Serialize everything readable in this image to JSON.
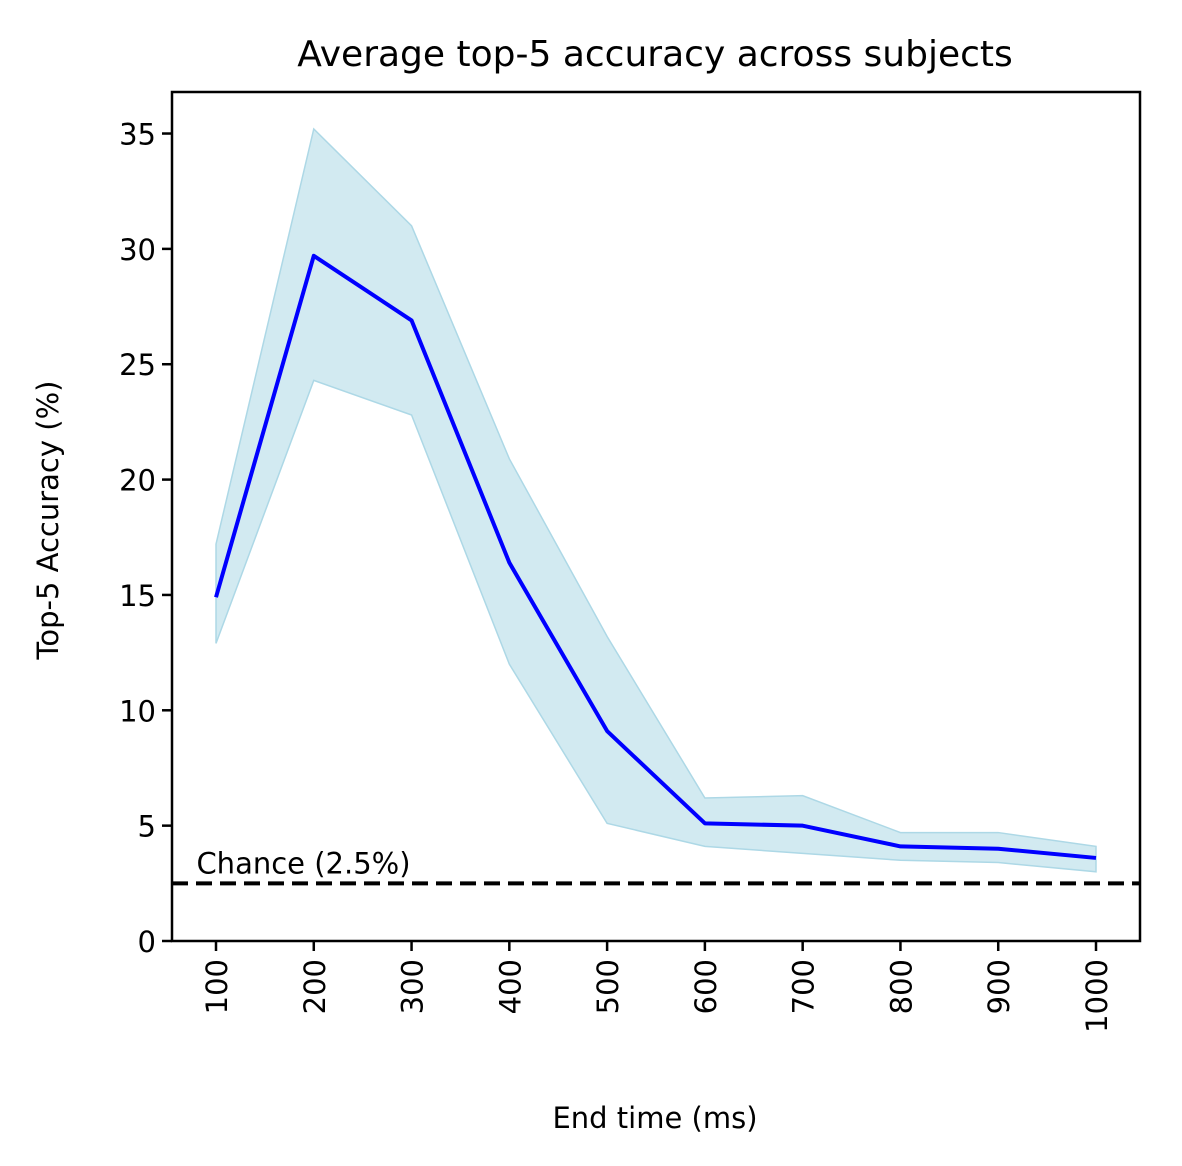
{
  "chart_data": {
    "type": "line",
    "title": "Average top-5 accuracy across subjects",
    "xlabel": "End time (ms)",
    "ylabel": "Top-5 Accuracy (%)",
    "categories": [
      "100",
      "200",
      "300",
      "400",
      "500",
      "600",
      "700",
      "800",
      "900",
      "1000"
    ],
    "x": [
      100,
      200,
      300,
      400,
      500,
      600,
      700,
      800,
      900,
      1000
    ],
    "ylim": [
      0,
      36.8
    ],
    "yticks": [
      0,
      5,
      10,
      15,
      20,
      25,
      30,
      35
    ],
    "ytick_labels": [
      "0",
      "5",
      "10",
      "15",
      "20",
      "25",
      "30",
      "35"
    ],
    "grid": false,
    "series": [
      {
        "values": [
          14.9,
          29.7,
          26.9,
          16.4,
          9.1,
          5.1,
          5.0,
          4.1,
          4.0,
          3.6
        ],
        "lower": [
          12.9,
          24.3,
          22.8,
          12.0,
          5.1,
          4.1,
          3.8,
          3.5,
          3.4,
          3.0
        ],
        "upper": [
          17.2,
          35.2,
          31.0,
          20.9,
          13.2,
          6.2,
          6.3,
          4.7,
          4.7,
          4.1
        ],
        "color": "#0000ff",
        "band_color": "#add8e6"
      }
    ],
    "reference_line": {
      "value": 2.5,
      "label": "Chance (2.5%)",
      "color": "#000000",
      "style": "dashed"
    }
  }
}
